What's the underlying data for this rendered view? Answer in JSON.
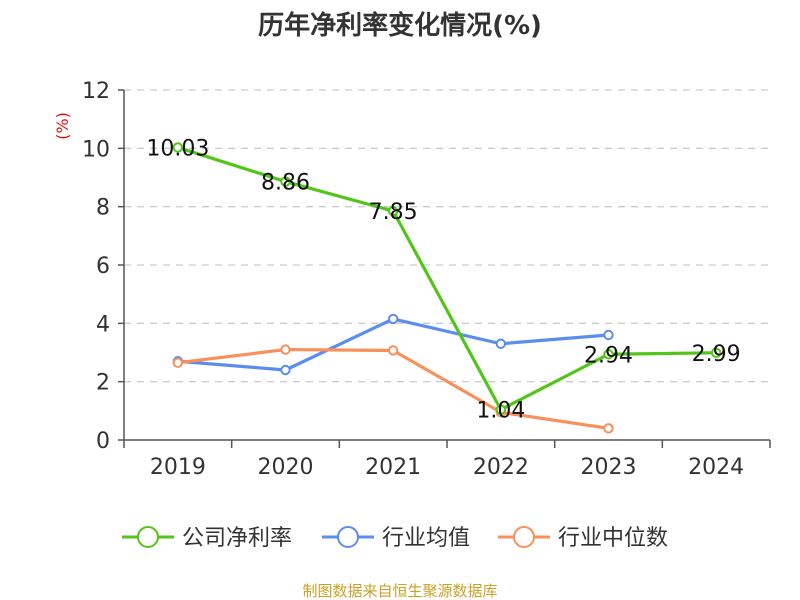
{
  "chart_data": {
    "type": "line",
    "title": "历年净利率变化情况(%)",
    "ylabel": "(%)",
    "xlabel": "",
    "categories": [
      "2019",
      "2020",
      "2021",
      "2022",
      "2023",
      "2024"
    ],
    "ylim": [
      0,
      12
    ],
    "yticks": [
      0,
      2,
      4,
      6,
      8,
      10,
      12
    ],
    "grid": true,
    "legend_position": "bottom",
    "series": [
      {
        "name": "公司净利率",
        "color": "#52c41a",
        "values": [
          10.03,
          8.86,
          7.85,
          1.04,
          2.94,
          2.99
        ],
        "labels": [
          "10.03",
          "8.86",
          "7.85",
          "1.04",
          "2.94",
          "2.99"
        ]
      },
      {
        "name": "行业均值",
        "color": "#5b8def",
        "values": [
          2.7,
          2.4,
          4.15,
          3.3,
          3.6,
          null
        ]
      },
      {
        "name": "行业中位数",
        "color": "#f7905a",
        "values": [
          2.65,
          3.1,
          3.07,
          0.95,
          0.4,
          null
        ]
      }
    ]
  },
  "source": "制图数据来自恒生聚源数据库"
}
